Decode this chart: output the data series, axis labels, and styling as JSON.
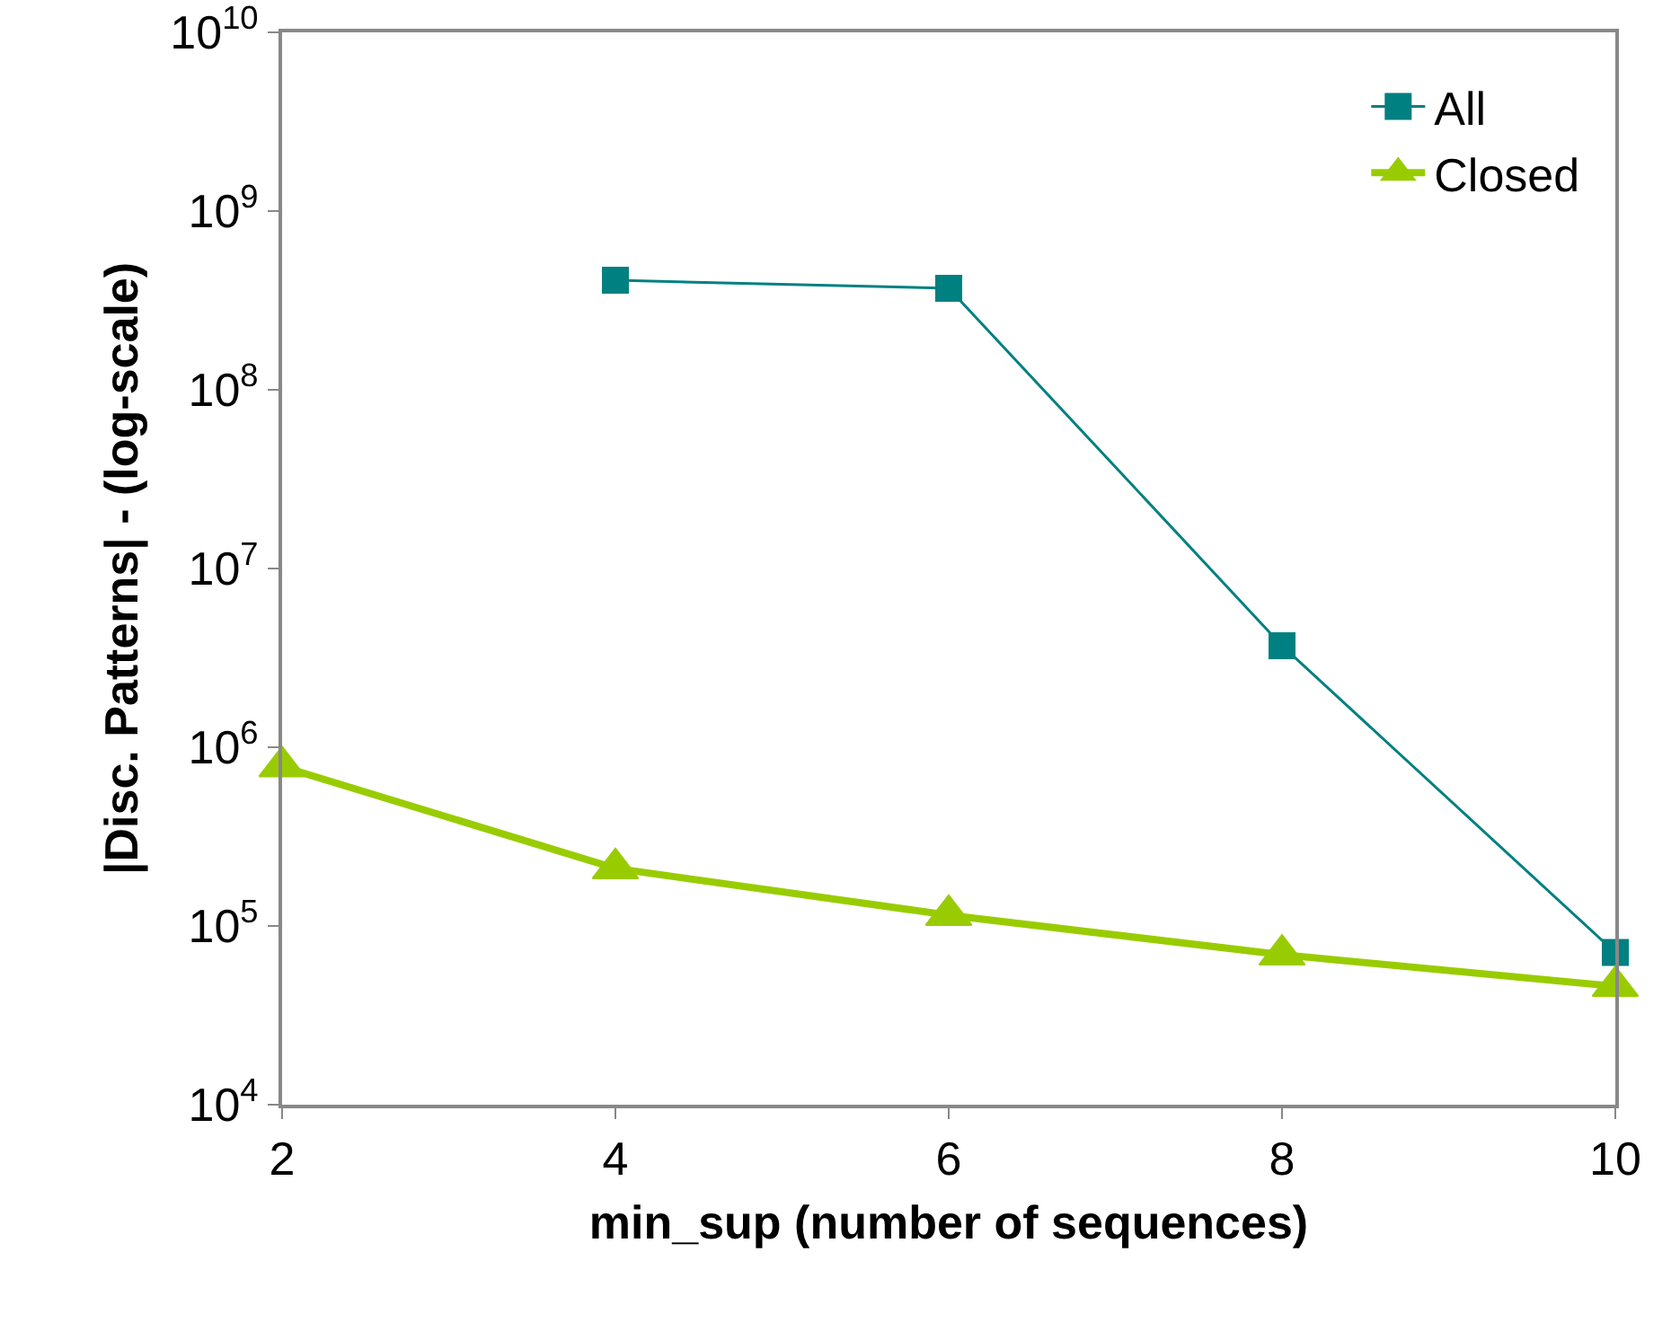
{
  "chart_data": {
    "type": "line",
    "xlabel": "min_sup (number of sequences)",
    "ylabel": "|Disc. Patterns| - (log-scale)",
    "x": [
      2,
      4,
      6,
      8,
      10
    ],
    "series": [
      {
        "name": "All",
        "color": "#008080",
        "marker": "square",
        "values": [
          null,
          410000000,
          370000000,
          3700000,
          71000
        ]
      },
      {
        "name": "Closed",
        "color": "#99cc00",
        "marker": "triangle",
        "values": [
          780000,
          210000,
          115000,
          69000,
          46000
        ]
      }
    ],
    "xlim": [
      2,
      10
    ],
    "xticks": [
      2,
      4,
      6,
      8,
      10
    ],
    "ylim": [
      10000,
      10000000000
    ],
    "yticks": [
      {
        "value": 10000,
        "label": "10$^{4}$"
      },
      {
        "value": 100000,
        "label": "10$^{5}$"
      },
      {
        "value": 1000000,
        "label": "10$^{6}$"
      },
      {
        "value": 10000000,
        "label": "10$^{7}$"
      },
      {
        "value": 100000000,
        "label": "10$^{8}$"
      },
      {
        "value": 1000000000,
        "label": "10$^{9}$"
      },
      {
        "value": 10000000000,
        "label": "10$^{10}$"
      }
    ],
    "log": true,
    "grid": false,
    "legend": "top right"
  }
}
